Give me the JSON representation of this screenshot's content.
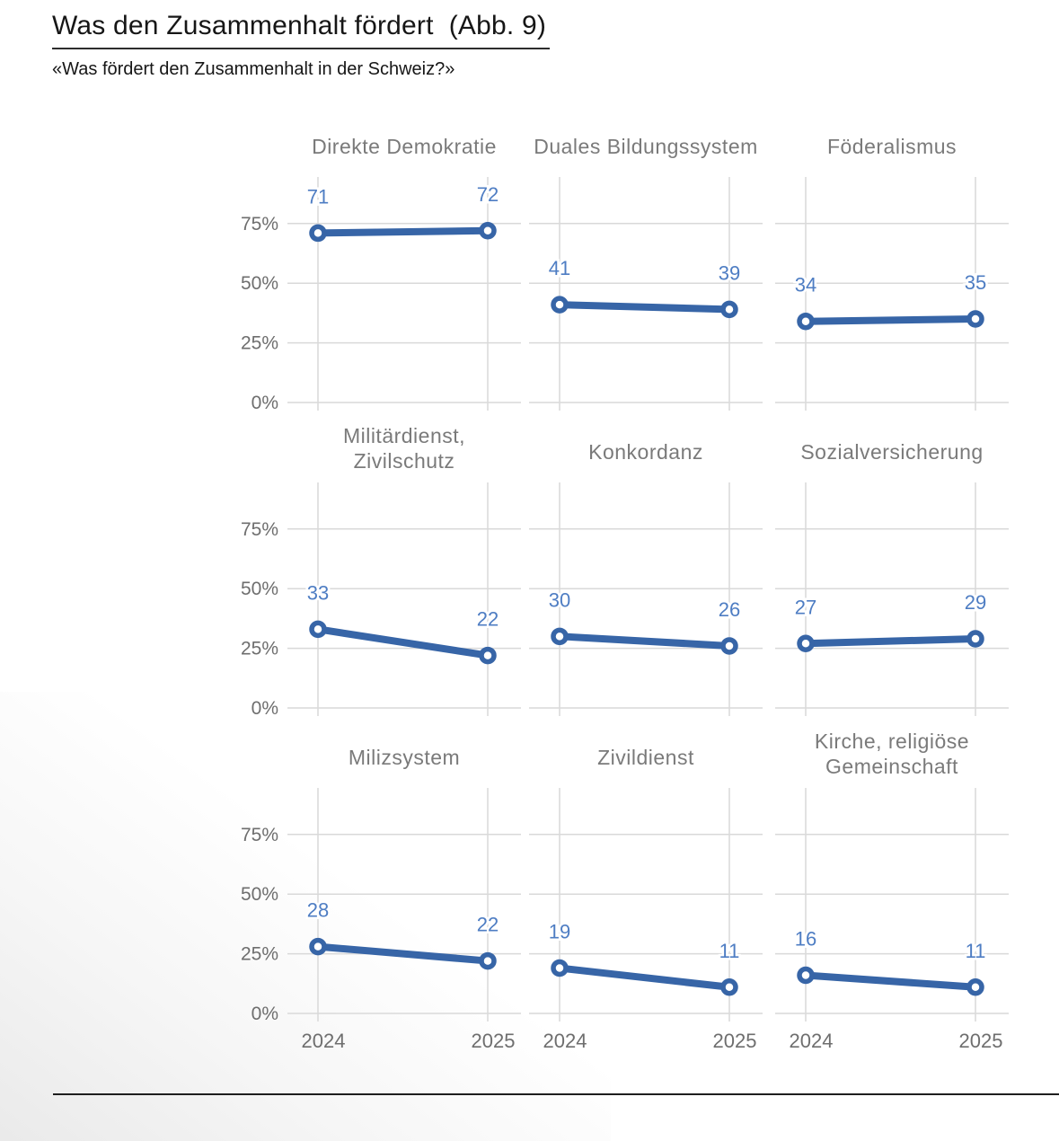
{
  "header": {
    "title": "Was den Zusammenhalt fördert  (Abb. 9)",
    "subtitle": "«Was fördert den Zusammenhalt in der Schweiz?»"
  },
  "chart_data": {
    "type": "line",
    "layout": "3x3-small-multiples",
    "title": "Was den Zusammenhalt fördert (Abb. 9)",
    "subtitle": "«Was fördert den Zusammenhalt in der Schweiz?»",
    "x_categories": [
      "2024",
      "2025"
    ],
    "y_ticks": [
      {
        "label": "0%",
        "value": 0
      },
      {
        "label": "25%",
        "value": 25
      },
      {
        "label": "50%",
        "value": 50
      },
      {
        "label": "75%",
        "value": 75
      }
    ],
    "ylim": [
      0,
      95
    ],
    "grid": true,
    "unit": "percent",
    "panels": [
      {
        "title_lines": [
          "Direkte Demokratie"
        ],
        "values": [
          71,
          72
        ]
      },
      {
        "title_lines": [
          "Duales Bildungssystem"
        ],
        "values": [
          41,
          39
        ]
      },
      {
        "title_lines": [
          "Föderalismus"
        ],
        "values": [
          34,
          35
        ]
      },
      {
        "title_lines": [
          "Militärdienst,",
          "Zivilschutz"
        ],
        "values": [
          33,
          22
        ]
      },
      {
        "title_lines": [
          "Konkordanz"
        ],
        "values": [
          30,
          26
        ]
      },
      {
        "title_lines": [
          "Sozialversicherung"
        ],
        "values": [
          27,
          29
        ]
      },
      {
        "title_lines": [
          "Milizsystem"
        ],
        "values": [
          28,
          22
        ]
      },
      {
        "title_lines": [
          "Zivildienst"
        ],
        "values": [
          19,
          11
        ]
      },
      {
        "title_lines": [
          "Kirche, religiöse",
          "Gemeinschaft"
        ],
        "values": [
          16,
          11
        ]
      }
    ],
    "colors": {
      "line": "#3765a7",
      "value_label": "#4e7dc3",
      "gridline": "#d9d9d9",
      "axis_label": "#6e6e6e",
      "panel_title": "#7a7a7a"
    }
  }
}
